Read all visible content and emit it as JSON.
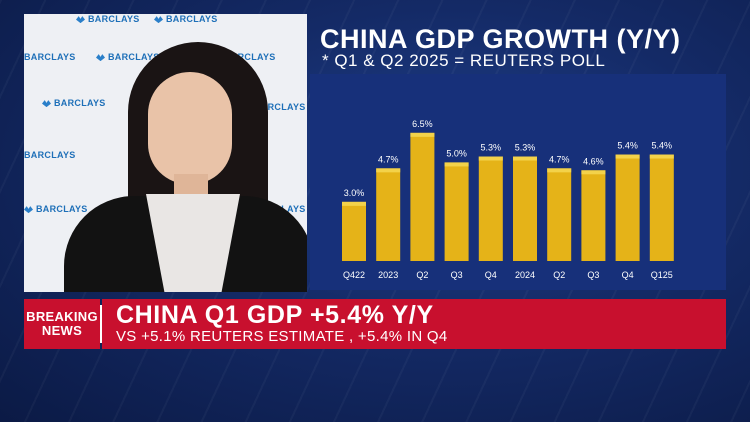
{
  "video": {
    "logo_text": "BARCLAYS"
  },
  "chart_title": "CHINA GDP GROWTH (Y/Y)",
  "chart_subtitle": "* Q1 & Q2 2025 = REUTERS POLL",
  "chart_data": {
    "type": "bar",
    "title": "CHINA GDP GROWTH (Y/Y)",
    "subtitle": "* Q1 & Q2 2025 = REUTERS POLL",
    "categories": [
      "Q422",
      "2023",
      "Q2",
      "Q3",
      "Q4",
      "2024",
      "Q2",
      "Q3",
      "Q4",
      "Q125"
    ],
    "values": [
      3.0,
      4.7,
      6.5,
      5.0,
      5.3,
      5.3,
      4.7,
      4.6,
      5.4,
      5.4
    ],
    "value_labels": [
      "3.0%",
      "4.7%",
      "6.5%",
      "5.0%",
      "5.3%",
      "5.3%",
      "4.7%",
      "4.6%",
      "5.4%",
      "5.4%"
    ],
    "xlabel": "",
    "ylabel": "",
    "ylim": [
      0,
      7
    ],
    "grid": false,
    "colors": {
      "bar": "#e5b318",
      "bar_top": "#f3d24a",
      "panel": "#17307a",
      "text": "#ffffff"
    }
  },
  "banner": {
    "label_line1": "BREAKING",
    "label_line2": "NEWS",
    "headline": "CHINA Q1 GDP +5.4% Y/Y",
    "subline": "VS +5.1% REUTERS ESTIMATE , +5.4% IN Q4",
    "color": "#c8102e"
  }
}
